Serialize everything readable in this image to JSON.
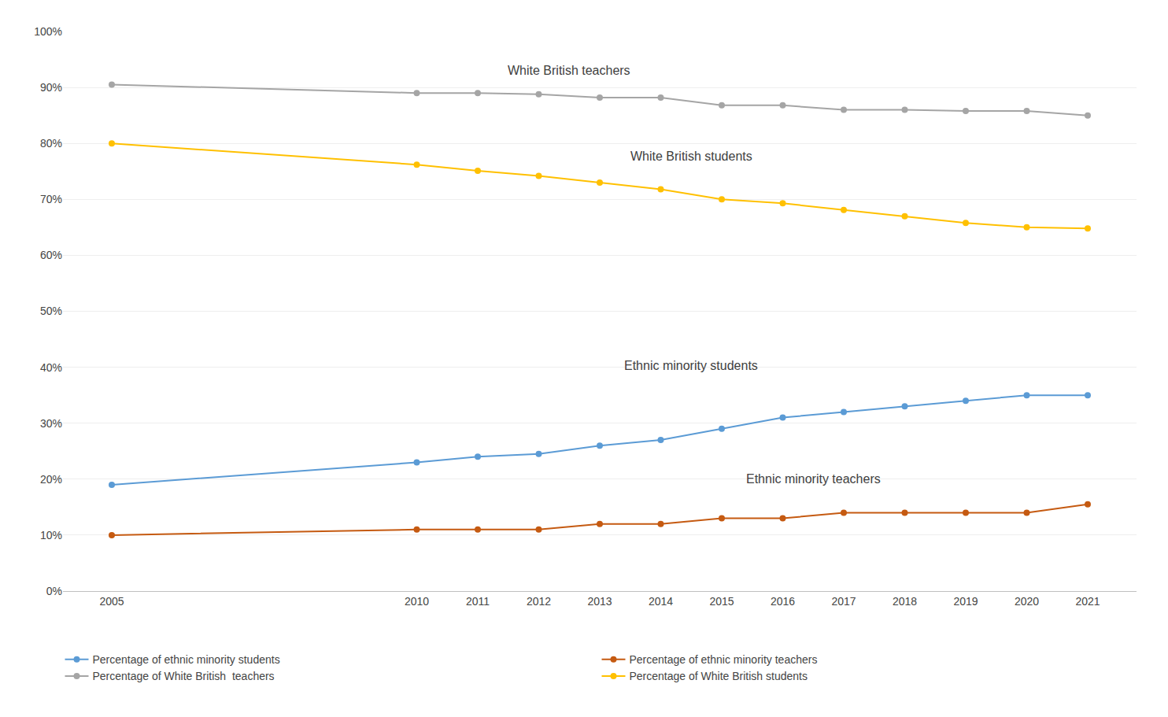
{
  "chart_data": {
    "type": "line",
    "x": [
      2005,
      2010,
      2011,
      2012,
      2013,
      2014,
      2015,
      2016,
      2017,
      2018,
      2019,
      2020,
      2021
    ],
    "series": [
      {
        "name": "Percentage of ethnic minority students",
        "color": "#5B9BD5",
        "marker": "circle",
        "line_style": "solid",
        "values": [
          0.19,
          0.23,
          0.24,
          0.245,
          0.26,
          0.27,
          0.29,
          0.31,
          0.32,
          0.33,
          0.34,
          0.35,
          0.35
        ]
      },
      {
        "name": "Percentage of ethnic minority teachers",
        "color": "#C55A11",
        "marker": "circle",
        "line_style": "solid",
        "values": [
          0.1,
          0.11,
          0.11,
          0.11,
          0.12,
          0.12,
          0.13,
          0.13,
          0.14,
          0.14,
          0.14,
          0.14,
          0.155
        ]
      },
      {
        "name": "Percentage of White British  teachers",
        "color": "#A5A5A5",
        "marker": "circle",
        "line_style": "solid",
        "values": [
          0.905,
          0.89,
          0.89,
          0.888,
          0.882,
          0.882,
          0.868,
          0.868,
          0.86,
          0.86,
          0.858,
          0.858,
          0.85
        ]
      },
      {
        "name": "Percentage of White British students",
        "color": "#FFC000",
        "marker": "circle",
        "line_style": "solid",
        "values": [
          0.8,
          0.762,
          0.751,
          0.742,
          0.73,
          0.718,
          0.7,
          0.693,
          0.681,
          0.67,
          0.658,
          0.65,
          0.648
        ]
      }
    ],
    "annotations": [
      {
        "text": "White British teachers",
        "x": 2012.5,
        "y": 0.916
      },
      {
        "text": "White British students",
        "x": 2014.5,
        "y": 0.762
      },
      {
        "text": "Ethnic minority students",
        "x": 2014.5,
        "y": 0.388
      },
      {
        "text": "Ethnic minority teachers",
        "x": 2016.5,
        "y": 0.186
      }
    ],
    "xlim": [
      2004.2,
      2021.8
    ],
    "xticks": [
      2005,
      2010,
      2011,
      2012,
      2013,
      2014,
      2015,
      2016,
      2017,
      2018,
      2019,
      2020,
      2021
    ],
    "ylim": [
      0.0,
      1.0
    ],
    "yticks": [
      {
        "value": 0.0,
        "label": "0%"
      },
      {
        "value": 0.1,
        "label": "10%"
      },
      {
        "value": 0.2,
        "label": "20%"
      },
      {
        "value": 0.3,
        "label": "30%"
      },
      {
        "value": 0.4,
        "label": "40%"
      },
      {
        "value": 0.5,
        "label": "50%"
      },
      {
        "value": 0.6,
        "label": "60%"
      },
      {
        "value": 0.7,
        "label": "70%"
      },
      {
        "value": 0.8,
        "label": "80%"
      },
      {
        "value": 0.9,
        "label": "90%"
      },
      {
        "value": 1.0,
        "label": "100%"
      }
    ],
    "grid": true,
    "legend": "bottom"
  }
}
